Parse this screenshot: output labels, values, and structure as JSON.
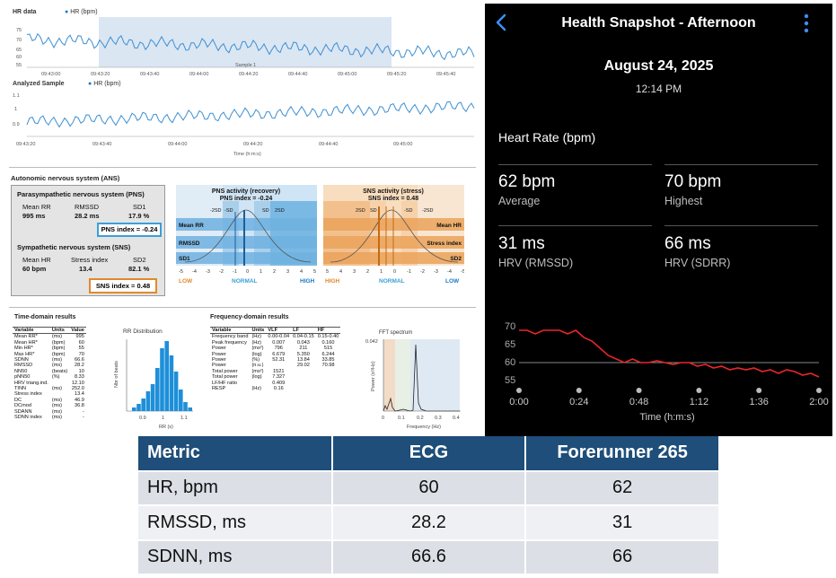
{
  "kubios": {
    "hr_data": {
      "title": "HR data",
      "legend": "HR (bpm)",
      "y_ticks": [
        "75",
        "70",
        "65",
        "60",
        "55"
      ],
      "x_ticks": [
        "09:43:00",
        "09:43:20",
        "09:43:40",
        "09:44:00",
        "09:44:20",
        "09:44:40",
        "09:45:00",
        "09:45:20",
        "09:45:40"
      ],
      "sample_label": "Sample 1"
    },
    "analyzed": {
      "title": "Analyzed Sample",
      "legend": "HR (bpm)",
      "y_ticks": [
        "1.1",
        "1",
        "0.9"
      ],
      "x_ticks": [
        "09:43:20",
        "09:43:40",
        "09:44:00",
        "09:44:20",
        "09:44:40",
        "09:45:00"
      ],
      "x_label": "Time (h:m:s)"
    },
    "ans": {
      "title": "Autonomic nervous system (ANS)",
      "pns_title": "Parasympathetic nervous system (PNS)",
      "pns_headers": [
        "Mean RR",
        "RMSSD",
        "SD1"
      ],
      "pns_values": [
        "995 ms",
        "28.2 ms",
        "17.9 %"
      ],
      "pns_index": "PNS index = -0.24",
      "sns_title": "Sympathetic nervous system (SNS)",
      "sns_headers": [
        "Mean HR",
        "Stress index",
        "SD2"
      ],
      "sns_values": [
        "60 bpm",
        "13.4",
        "82.1 %"
      ],
      "sns_index": "SNS index = 0.48"
    },
    "pns_chart": {
      "title": "PNS activity (recovery)",
      "index": "PNS index = -0.24",
      "rows": [
        "Mean RR",
        "RMSSD",
        "SD1"
      ],
      "sd_labels": [
        "-2SD",
        "-SD",
        "SD",
        "2SD"
      ],
      "axis": [
        "-5",
        "-4",
        "-3",
        "-2",
        "-1",
        "0",
        "1",
        "2",
        "3",
        "4",
        "5"
      ],
      "low": "LOW",
      "normal": "NORMAL",
      "high": "HIGH"
    },
    "sns_chart": {
      "title": "SNS activity (stress)",
      "index": "SNS index = 0.48",
      "rows": [
        "Mean HR",
        "Stress index",
        "SD2"
      ],
      "sd_labels": [
        "2SD",
        "SD",
        "-SD",
        "-2SD"
      ],
      "axis": [
        "5",
        "4",
        "3",
        "2",
        "1",
        "0",
        "-1",
        "-2",
        "-3",
        "-4",
        "-5"
      ],
      "high": "HIGH",
      "normal": "NORMAL",
      "low": "LOW"
    },
    "time_domain": {
      "title": "Time-domain results",
      "headers": [
        "Variable",
        "Units",
        "Value"
      ],
      "rows": [
        [
          "Mean RR*",
          "(ms)",
          "995"
        ],
        [
          "Mean HR*",
          "(bpm)",
          "60"
        ],
        [
          "Min HR*",
          "(bpm)",
          "55"
        ],
        [
          "Max HR*",
          "(bpm)",
          "70"
        ],
        [
          "SDNN",
          "(ms)",
          "66.6"
        ],
        [
          "RMSSD",
          "(ms)",
          "28.2"
        ],
        [
          "NN50",
          "(beats)",
          "10"
        ],
        [
          "pNN50",
          "(%)",
          "8.33"
        ],
        [
          "HRV triang.ind.",
          "",
          "12.10"
        ],
        [
          "TINN",
          "(ms)",
          "252.0"
        ],
        [
          "Stress index",
          "",
          "13.4"
        ],
        [
          "DC",
          "(ms)",
          "46.9"
        ],
        [
          "DCmod",
          "(ms)",
          "36.8"
        ],
        [
          "SDANN",
          "(ms)",
          "-"
        ],
        [
          "SDNN index",
          "(ms)",
          "-"
        ]
      ]
    },
    "rr_dist": {
      "title": "RR Distribution",
      "ylabel": "Nbr of beats",
      "xlabel": "RR (s)",
      "x_ticks": [
        "0.9",
        "1",
        "1.1"
      ]
    },
    "freq_domain": {
      "title": "Frequency-domain results",
      "headers": [
        "Variable",
        "Units",
        "VLF",
        "LF",
        "HF"
      ],
      "rows": [
        [
          "Frequency band",
          "(Hz)",
          "0.00-0.04",
          "0.04-0.15",
          "0.15-0.40"
        ],
        [
          "Peak frequency",
          "(Hz)",
          "0.007",
          "0.043",
          "0.160"
        ],
        [
          "Power",
          "(ms²)",
          "796",
          "211",
          "515"
        ],
        [
          "Power",
          "(log)",
          "6.679",
          "5.350",
          "6.244"
        ],
        [
          "Power",
          "(%)",
          "52.31",
          "13.84",
          "33.85"
        ],
        [
          "Power",
          "(n.u.)",
          "",
          "29.02",
          "70.98"
        ],
        [
          "",
          "",
          "",
          "",
          ""
        ],
        [
          "Total power",
          "(ms²)",
          "1521",
          "",
          ""
        ],
        [
          "Total power",
          "(log)",
          "7.327",
          "",
          ""
        ],
        [
          "LF/HF ratio",
          "",
          "0.409",
          "",
          ""
        ],
        [
          "RESP",
          "(Hz)",
          "0.16",
          "",
          ""
        ]
      ]
    },
    "fft": {
      "title": "FFT spectrum",
      "ylabel": "Power (s²/Hz)",
      "xlabel": "Frequency (Hz)",
      "y_top": "0.042",
      "x_ticks": [
        "0",
        "0.1",
        "0.2",
        "0.3",
        "0.4"
      ]
    }
  },
  "phone": {
    "title": "Health Snapshot - Afternoon",
    "date": "August 24, 2025",
    "time": "12:14 PM",
    "section": "Heart Rate (bpm)",
    "stats": [
      {
        "value": "62 bpm",
        "label": "Average"
      },
      {
        "value": "70 bpm",
        "label": "Highest"
      },
      {
        "value": "31 ms",
        "label": "HRV (RMSSD)"
      },
      {
        "value": "66 ms",
        "label": "HRV (SDRR)"
      }
    ],
    "chart": {
      "y_ticks": [
        "70",
        "65",
        "60",
        "55"
      ],
      "x_ticks": [
        "0:00",
        "0:24",
        "0:48",
        "1:12",
        "1:36",
        "2:00"
      ],
      "x_label": "Time (h:m:s)",
      "reference_line": 60,
      "line_color": "#e8262a"
    }
  },
  "comparison": {
    "headers": [
      "Metric",
      "ECG",
      "Forerunner 265"
    ],
    "rows": [
      [
        "HR, bpm",
        "60",
        "62"
      ],
      [
        "RMSSD, ms",
        "28.2",
        "31"
      ],
      [
        "SDNN, ms",
        "66.6",
        "66"
      ]
    ]
  }
}
